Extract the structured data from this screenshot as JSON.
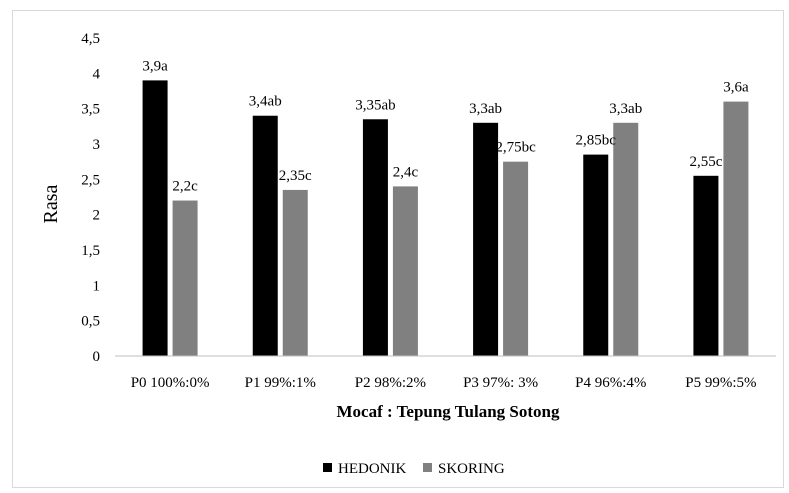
{
  "chart_data": {
    "type": "bar",
    "categories": [
      "P0 100%:0%",
      "P1 99%:1%",
      "P2 98%:2%",
      "P3 97%: 3%",
      "P4 96%:4%",
      "P5 99%:5%"
    ],
    "series": [
      {
        "name": "HEDONIK",
        "color": "#000000",
        "values": [
          3.9,
          3.4,
          3.35,
          3.3,
          2.85,
          2.55
        ],
        "labels": [
          "3,9a",
          "3,4ab",
          "3,35ab",
          "3,3ab",
          "2,85bc",
          "2,55c"
        ]
      },
      {
        "name": "SKORING",
        "color": "#808080",
        "values": [
          2.2,
          2.35,
          2.4,
          2.75,
          3.3,
          3.6
        ],
        "labels": [
          "2,2c",
          "2,35c",
          "2,4c",
          "2,75bc",
          "3,3ab",
          "3,6a"
        ]
      }
    ],
    "title": "",
    "xlabel": "Mocaf : Tepung Tulang Sotong",
    "ylabel": "Rasa",
    "ylim": [
      0,
      4.5
    ],
    "yticks": [
      0,
      0.5,
      1,
      1.5,
      2,
      2.5,
      3,
      3.5,
      4,
      4.5
    ],
    "ytick_labels": [
      "0",
      "0,5",
      "1",
      "1,5",
      "2",
      "2,5",
      "3",
      "3,5",
      "4",
      "4,5"
    ],
    "grid": false,
    "legend_position": "bottom"
  }
}
